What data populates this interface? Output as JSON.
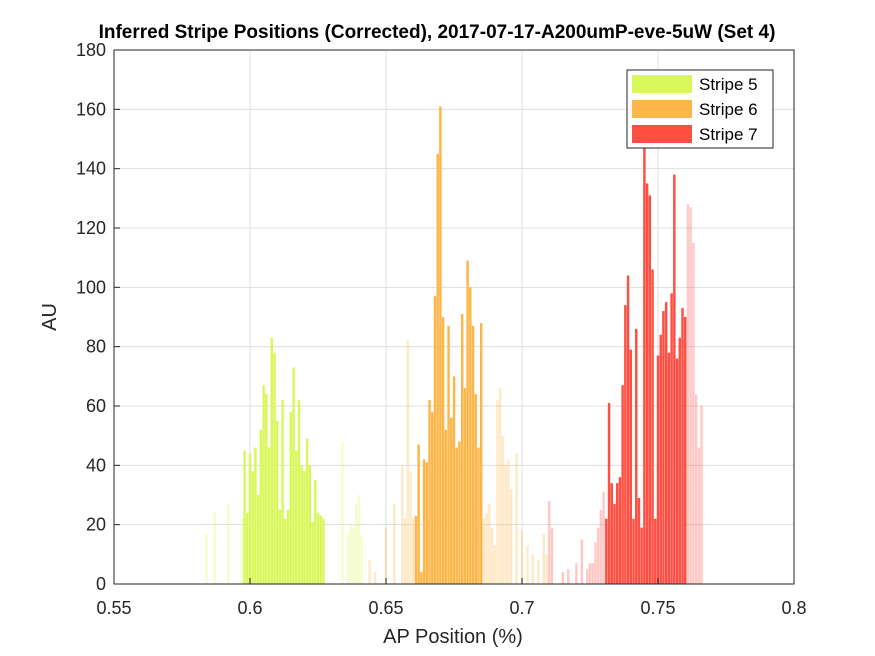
{
  "chart_data": {
    "type": "bar",
    "title": "Inferred Stripe Positions (Corrected), 2017-07-17-A200umP-eve-5uW (Set 4)",
    "xlabel": "AP Position (%)",
    "ylabel": "AU",
    "xlim": [
      0.55,
      0.8
    ],
    "ylim": [
      0,
      180
    ],
    "xticks": [
      "0.55",
      "0.6",
      "0.65",
      "0.7",
      "0.75",
      "0.8"
    ],
    "yticks": [
      "0",
      "20",
      "40",
      "60",
      "80",
      "100",
      "120",
      "140",
      "160",
      "180"
    ],
    "grid": true,
    "legend_position": "top-right",
    "colors": {
      "stripe5": "#d9f75a",
      "stripe6": "#fdb64a",
      "stripe7": "#ff4e42"
    },
    "series": [
      {
        "name": "Stripe 5",
        "bars": [
          [
            0.584,
            17
          ],
          [
            0.587,
            24
          ],
          [
            0.592,
            27
          ],
          [
            0.597,
            22
          ],
          [
            0.598,
            45
          ],
          [
            0.599,
            24
          ],
          [
            0.6,
            44
          ],
          [
            0.601,
            38
          ],
          [
            0.602,
            46
          ],
          [
            0.603,
            30
          ],
          [
            0.604,
            52
          ],
          [
            0.605,
            67
          ],
          [
            0.606,
            64
          ],
          [
            0.607,
            46
          ],
          [
            0.608,
            83
          ],
          [
            0.609,
            78
          ],
          [
            0.61,
            55
          ],
          [
            0.611,
            25
          ],
          [
            0.612,
            62
          ],
          [
            0.613,
            22
          ],
          [
            0.614,
            25
          ],
          [
            0.615,
            58
          ],
          [
            0.616,
            73
          ],
          [
            0.617,
            45
          ],
          [
            0.618,
            62
          ],
          [
            0.619,
            40
          ],
          [
            0.62,
            38
          ],
          [
            0.621,
            49
          ],
          [
            0.622,
            40
          ],
          [
            0.623,
            21
          ],
          [
            0.624,
            35
          ],
          [
            0.625,
            24
          ],
          [
            0.626,
            23
          ],
          [
            0.627,
            22
          ],
          [
            0.634,
            48
          ],
          [
            0.636,
            17
          ],
          [
            0.637,
            20
          ],
          [
            0.638,
            19
          ],
          [
            0.639,
            27
          ],
          [
            0.64,
            30
          ],
          [
            0.641,
            16
          ]
        ]
      },
      {
        "name": "Stripe 6",
        "bars": [
          [
            0.644,
            8
          ],
          [
            0.646,
            4
          ],
          [
            0.65,
            19
          ],
          [
            0.653,
            27
          ],
          [
            0.656,
            40
          ],
          [
            0.657,
            22
          ],
          [
            0.658,
            82
          ],
          [
            0.659,
            38
          ],
          [
            0.66,
            22
          ],
          [
            0.661,
            23
          ],
          [
            0.662,
            47
          ],
          [
            0.663,
            4
          ],
          [
            0.664,
            42
          ],
          [
            0.665,
            41
          ],
          [
            0.666,
            62
          ],
          [
            0.667,
            58
          ],
          [
            0.668,
            97
          ],
          [
            0.669,
            145
          ],
          [
            0.67,
            161
          ],
          [
            0.671,
            90
          ],
          [
            0.672,
            52
          ],
          [
            0.673,
            87
          ],
          [
            0.674,
            56
          ],
          [
            0.675,
            70
          ],
          [
            0.676,
            46
          ],
          [
            0.677,
            48
          ],
          [
            0.678,
            91
          ],
          [
            0.679,
            66
          ],
          [
            0.68,
            109
          ],
          [
            0.681,
            100
          ],
          [
            0.682,
            87
          ],
          [
            0.683,
            64
          ],
          [
            0.684,
            46
          ],
          [
            0.685,
            88
          ],
          [
            0.686,
            22
          ],
          [
            0.687,
            24
          ],
          [
            0.688,
            27
          ],
          [
            0.689,
            19
          ],
          [
            0.69,
            13
          ],
          [
            0.691,
            62
          ],
          [
            0.692,
            66
          ],
          [
            0.693,
            50
          ],
          [
            0.694,
            40
          ],
          [
            0.695,
            42
          ],
          [
            0.696,
            32
          ],
          [
            0.698,
            44
          ],
          [
            0.7,
            18
          ],
          [
            0.702,
            13
          ],
          [
            0.704,
            10
          ],
          [
            0.706,
            8
          ],
          [
            0.708,
            17
          ],
          [
            0.709,
            10
          ]
        ]
      },
      {
        "name": "Stripe 7",
        "bars": [
          [
            0.71,
            28
          ],
          [
            0.711,
            19
          ],
          [
            0.715,
            4
          ],
          [
            0.717,
            5
          ],
          [
            0.72,
            7
          ],
          [
            0.722,
            15
          ],
          [
            0.724,
            5
          ],
          [
            0.725,
            7
          ],
          [
            0.726,
            7
          ],
          [
            0.727,
            14
          ],
          [
            0.728,
            19
          ],
          [
            0.729,
            25
          ],
          [
            0.73,
            31
          ],
          [
            0.731,
            22
          ],
          [
            0.732,
            61
          ],
          [
            0.733,
            34
          ],
          [
            0.734,
            27
          ],
          [
            0.735,
            34
          ],
          [
            0.736,
            36
          ],
          [
            0.737,
            67
          ],
          [
            0.738,
            94
          ],
          [
            0.739,
            104
          ],
          [
            0.74,
            79
          ],
          [
            0.741,
            22
          ],
          [
            0.742,
            86
          ],
          [
            0.743,
            29
          ],
          [
            0.744,
            19
          ],
          [
            0.745,
            147
          ],
          [
            0.746,
            135
          ],
          [
            0.747,
            131
          ],
          [
            0.748,
            106
          ],
          [
            0.749,
            22
          ],
          [
            0.75,
            77
          ],
          [
            0.751,
            84
          ],
          [
            0.752,
            92
          ],
          [
            0.753,
            95
          ],
          [
            0.754,
            78
          ],
          [
            0.755,
            98
          ],
          [
            0.756,
            138
          ],
          [
            0.757,
            76
          ],
          [
            0.758,
            83
          ],
          [
            0.759,
            93
          ],
          [
            0.76,
            90
          ],
          [
            0.761,
            128
          ],
          [
            0.762,
            127
          ],
          [
            0.763,
            115
          ],
          [
            0.764,
            64
          ],
          [
            0.765,
            46
          ],
          [
            0.766,
            60
          ]
        ]
      }
    ]
  }
}
